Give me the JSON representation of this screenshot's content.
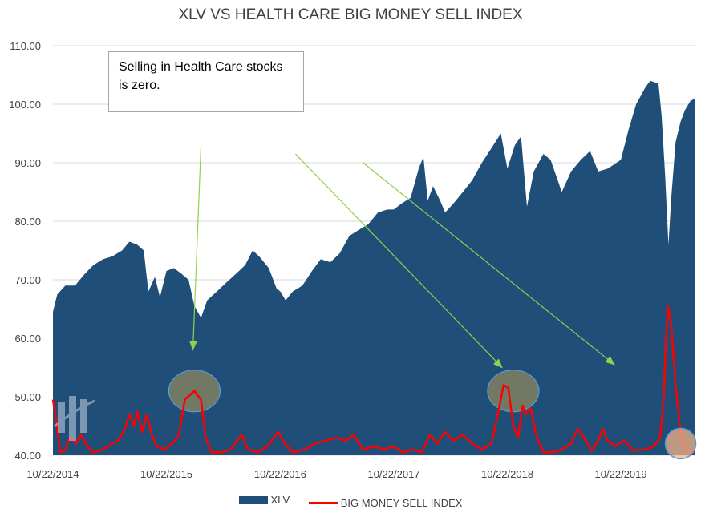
{
  "chart_data": {
    "type": "area",
    "title": "XLV VS HEALTH CARE BIG MONEY SELL INDEX",
    "ylim": [
      40,
      110
    ],
    "yticks": [
      "110.00",
      "100.00",
      "90.00",
      "80.00",
      "70.00",
      "60.00",
      "50.00",
      "40.00"
    ],
    "ytick_values": [
      110,
      100,
      90,
      80,
      70,
      60,
      50,
      40
    ],
    "xlim": [
      "2014-10-22",
      "2020-06-15"
    ],
    "xticks": [
      "10/22/2014",
      "10/22/2015",
      "10/22/2016",
      "10/22/2017",
      "10/22/2018",
      "10/22/2019"
    ],
    "xtick_dates": [
      "2014-10-22",
      "2015-10-22",
      "2016-10-22",
      "2017-10-22",
      "2018-10-22",
      "2019-10-22"
    ],
    "grid": "horizontal",
    "legend_position": "bottom",
    "series": [
      {
        "name": "XLV",
        "kind": "area",
        "color": "#1f4e79",
        "points": [
          [
            "2014-10-22",
            64.5
          ],
          [
            "2014-11-05",
            67.5
          ],
          [
            "2014-12-01",
            69.0
          ],
          [
            "2015-01-01",
            69.0
          ],
          [
            "2015-02-01",
            71.0
          ],
          [
            "2015-03-01",
            72.5
          ],
          [
            "2015-04-01",
            73.5
          ],
          [
            "2015-05-01",
            74.0
          ],
          [
            "2015-06-01",
            75.0
          ],
          [
            "2015-06-25",
            76.5
          ],
          [
            "2015-07-20",
            76.0
          ],
          [
            "2015-08-10",
            75.0
          ],
          [
            "2015-08-25",
            68.0
          ],
          [
            "2015-09-15",
            70.5
          ],
          [
            "2015-10-01",
            67.0
          ],
          [
            "2015-10-22",
            71.5
          ],
          [
            "2015-11-15",
            72.0
          ],
          [
            "2015-12-10",
            71.0
          ],
          [
            "2016-01-01",
            70.0
          ],
          [
            "2016-01-20",
            65.5
          ],
          [
            "2016-02-10",
            63.5
          ],
          [
            "2016-03-01",
            66.5
          ],
          [
            "2016-04-01",
            68.0
          ],
          [
            "2016-05-01",
            69.5
          ],
          [
            "2016-06-01",
            71.0
          ],
          [
            "2016-07-01",
            72.5
          ],
          [
            "2016-07-25",
            75.0
          ],
          [
            "2016-08-15",
            74.0
          ],
          [
            "2016-09-15",
            72.0
          ],
          [
            "2016-10-10",
            68.5
          ],
          [
            "2016-10-22",
            68.0
          ],
          [
            "2016-11-08",
            66.5
          ],
          [
            "2016-12-01",
            68.0
          ],
          [
            "2017-01-01",
            69.0
          ],
          [
            "2017-02-01",
            71.5
          ],
          [
            "2017-03-01",
            73.5
          ],
          [
            "2017-04-01",
            73.0
          ],
          [
            "2017-05-01",
            74.5
          ],
          [
            "2017-06-01",
            77.5
          ],
          [
            "2017-07-01",
            78.5
          ],
          [
            "2017-08-01",
            79.5
          ],
          [
            "2017-09-01",
            81.5
          ],
          [
            "2017-10-01",
            82.0
          ],
          [
            "2017-10-22",
            82.0
          ],
          [
            "2017-11-15",
            83.0
          ],
          [
            "2017-12-15",
            84.0
          ],
          [
            "2018-01-10",
            89.0
          ],
          [
            "2018-01-25",
            91.0
          ],
          [
            "2018-02-08",
            83.5
          ],
          [
            "2018-02-25",
            86.0
          ],
          [
            "2018-03-20",
            83.5
          ],
          [
            "2018-04-05",
            81.5
          ],
          [
            "2018-05-01",
            83.0
          ],
          [
            "2018-06-01",
            85.0
          ],
          [
            "2018-07-01",
            87.0
          ],
          [
            "2018-08-01",
            90.0
          ],
          [
            "2018-09-01",
            92.5
          ],
          [
            "2018-10-01",
            95.0
          ],
          [
            "2018-10-22",
            89.0
          ],
          [
            "2018-11-15",
            93.0
          ],
          [
            "2018-12-05",
            94.5
          ],
          [
            "2018-12-24",
            82.5
          ],
          [
            "2019-01-15",
            88.5
          ],
          [
            "2019-02-15",
            91.5
          ],
          [
            "2019-03-10",
            90.5
          ],
          [
            "2019-04-15",
            85.0
          ],
          [
            "2019-05-15",
            88.5
          ],
          [
            "2019-06-15",
            90.5
          ],
          [
            "2019-07-15",
            92.0
          ],
          [
            "2019-08-10",
            88.5
          ],
          [
            "2019-09-10",
            89.0
          ],
          [
            "2019-10-22",
            90.5
          ],
          [
            "2019-11-15",
            95.5
          ],
          [
            "2019-12-10",
            100.0
          ],
          [
            "2020-01-10",
            103.0
          ],
          [
            "2020-01-25",
            104.0
          ],
          [
            "2020-02-20",
            103.5
          ],
          [
            "2020-03-01",
            98.0
          ],
          [
            "2020-03-12",
            88.0
          ],
          [
            "2020-03-23",
            76.0
          ],
          [
            "2020-04-01",
            84.0
          ],
          [
            "2020-04-15",
            93.5
          ],
          [
            "2020-05-01",
            97.0
          ],
          [
            "2020-05-15",
            99.0
          ],
          [
            "2020-06-01",
            100.5
          ],
          [
            "2020-06-15",
            101.0
          ]
        ]
      },
      {
        "name": "BIG MONEY SELL INDEX",
        "kind": "line",
        "color": "#ff0000",
        "points": [
          [
            "2014-10-22",
            49.5
          ],
          [
            "2014-11-01",
            46.0
          ],
          [
            "2014-11-15",
            40.5
          ],
          [
            "2014-12-01",
            41.0
          ],
          [
            "2014-12-15",
            43.0
          ],
          [
            "2015-01-05",
            42.0
          ],
          [
            "2015-01-20",
            43.5
          ],
          [
            "2015-02-10",
            41.5
          ],
          [
            "2015-03-01",
            40.5
          ],
          [
            "2015-04-01",
            41.0
          ],
          [
            "2015-05-01",
            42.0
          ],
          [
            "2015-05-20",
            42.5
          ],
          [
            "2015-06-10",
            44.5
          ],
          [
            "2015-06-25",
            47.0
          ],
          [
            "2015-07-10",
            45.0
          ],
          [
            "2015-07-20",
            47.5
          ],
          [
            "2015-08-05",
            44.0
          ],
          [
            "2015-08-20",
            47.0
          ],
          [
            "2015-09-05",
            43.5
          ],
          [
            "2015-09-20",
            41.5
          ],
          [
            "2015-10-15",
            41.0
          ],
          [
            "2015-11-10",
            42.0
          ],
          [
            "2015-12-01",
            43.5
          ],
          [
            "2015-12-20",
            49.5
          ],
          [
            "2016-01-20",
            51.0
          ],
          [
            "2016-02-10",
            49.5
          ],
          [
            "2016-02-25",
            43.0
          ],
          [
            "2016-03-15",
            40.5
          ],
          [
            "2016-04-15",
            40.5
          ],
          [
            "2016-05-15",
            41.0
          ],
          [
            "2016-06-20",
            43.5
          ],
          [
            "2016-07-10",
            41.0
          ],
          [
            "2016-08-10",
            40.5
          ],
          [
            "2016-09-10",
            41.5
          ],
          [
            "2016-10-15",
            44.0
          ],
          [
            "2016-11-05",
            42.0
          ],
          [
            "2016-12-01",
            40.5
          ],
          [
            "2017-01-10",
            41.0
          ],
          [
            "2017-02-10",
            42.0
          ],
          [
            "2017-03-15",
            42.5
          ],
          [
            "2017-04-20",
            43.0
          ],
          [
            "2017-05-20",
            42.5
          ],
          [
            "2017-06-15",
            43.5
          ],
          [
            "2017-07-15",
            41.0
          ],
          [
            "2017-08-20",
            41.5
          ],
          [
            "2017-09-20",
            41.0
          ],
          [
            "2017-10-22",
            41.5
          ],
          [
            "2017-11-20",
            40.5
          ],
          [
            "2017-12-20",
            41.0
          ],
          [
            "2018-01-20",
            40.5
          ],
          [
            "2018-02-15",
            43.5
          ],
          [
            "2018-03-10",
            42.0
          ],
          [
            "2018-04-05",
            44.0
          ],
          [
            "2018-05-01",
            42.5
          ],
          [
            "2018-06-01",
            43.5
          ],
          [
            "2018-07-01",
            42.0
          ],
          [
            "2018-08-01",
            41.0
          ],
          [
            "2018-09-01",
            42.0
          ],
          [
            "2018-09-25",
            48.0
          ],
          [
            "2018-10-10",
            52.0
          ],
          [
            "2018-10-25",
            51.5
          ],
          [
            "2018-11-10",
            45.0
          ],
          [
            "2018-11-25",
            43.0
          ],
          [
            "2018-12-10",
            48.5
          ],
          [
            "2018-12-20",
            47.0
          ],
          [
            "2019-01-05",
            48.0
          ],
          [
            "2019-01-25",
            43.0
          ],
          [
            "2019-02-15",
            40.5
          ],
          [
            "2019-03-15",
            40.5
          ],
          [
            "2019-04-15",
            41.0
          ],
          [
            "2019-05-15",
            42.0
          ],
          [
            "2019-06-05",
            44.5
          ],
          [
            "2019-06-25",
            43.0
          ],
          [
            "2019-07-20",
            40.8
          ],
          [
            "2019-08-10",
            42.5
          ],
          [
            "2019-08-25",
            44.5
          ],
          [
            "2019-09-10",
            42.5
          ],
          [
            "2019-10-01",
            41.5
          ],
          [
            "2019-11-01",
            42.5
          ],
          [
            "2019-12-01",
            40.8
          ],
          [
            "2020-01-10",
            41.0
          ],
          [
            "2020-02-05",
            41.5
          ],
          [
            "2020-02-25",
            43.0
          ],
          [
            "2020-03-08",
            50.0
          ],
          [
            "2020-03-15",
            60.0
          ],
          [
            "2020-03-22",
            65.5
          ],
          [
            "2020-04-01",
            62.0
          ],
          [
            "2020-04-15",
            52.0
          ],
          [
            "2020-05-01",
            44.0
          ],
          [
            "2020-05-15",
            41.5
          ],
          [
            "2020-06-01",
            40.5
          ],
          [
            "2020-06-15",
            40.2
          ]
        ]
      }
    ],
    "annotation": "Selling in Health Care stocks is zero."
  },
  "colors": {
    "area": "#1f4e79",
    "line": "#ff0000",
    "arrow": "#92d050",
    "ellipse_fill": "#808060",
    "ellipse_stroke": "#5b9bd5",
    "highlight_fill": "#f4b183",
    "gridline": "#d9d9d9"
  },
  "highlight_marks": [
    {
      "kind": "ellipse",
      "date": "2016-01-20",
      "value": 51.0
    },
    {
      "kind": "ellipse",
      "date": "2018-11-10",
      "value": 51.0
    },
    {
      "kind": "circle",
      "date": "2020-05-01",
      "value": 42.0
    }
  ],
  "arrows": [
    {
      "from": [
        "2016-02-10",
        93.0
      ],
      "to": [
        "2016-01-15",
        58.0
      ]
    },
    {
      "from": [
        "2016-12-10",
        91.5
      ],
      "to": [
        "2018-10-05",
        55.0
      ]
    },
    {
      "from": [
        "2017-07-15",
        90.0
      ],
      "to": [
        "2019-10-01",
        55.5
      ]
    }
  ],
  "legend": {
    "items": [
      {
        "label": "XLV",
        "marker": "area"
      },
      {
        "label": "BIG MONEY SELL INDEX",
        "marker": "line"
      }
    ]
  }
}
